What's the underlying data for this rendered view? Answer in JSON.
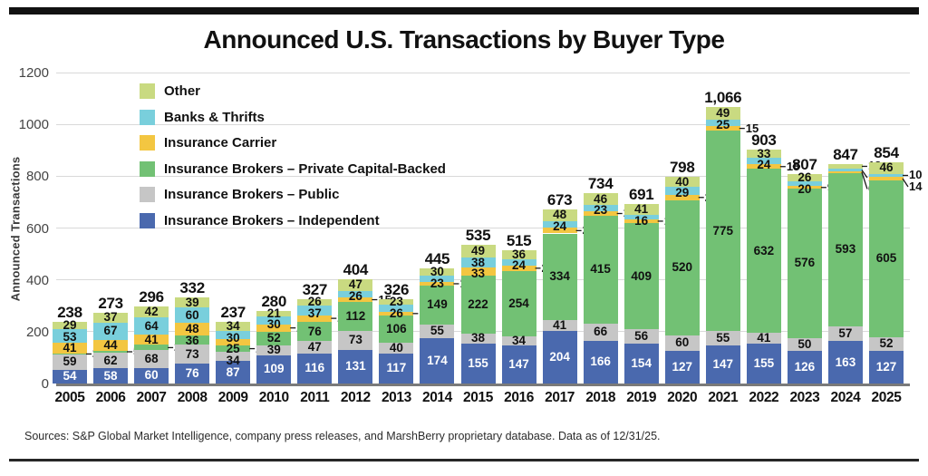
{
  "page": {
    "source_note": "Sources: S&P Global Market Intelligence, company press releases, and MarshBerry proprietary database. Data as of 12/31/25."
  },
  "chart_data": {
    "type": "bar",
    "stacked": true,
    "title": "Announced U.S. Transactions by Buyer Type",
    "xlabel": "",
    "ylabel": "Announced Transactions",
    "ylim": [
      0,
      1200
    ],
    "yticks": [
      0,
      200,
      400,
      600,
      800,
      1000,
      1200
    ],
    "grid": true,
    "legend_position": "upper-left",
    "categories": [
      "2005",
      "2006",
      "2007",
      "2008",
      "2009",
      "2010",
      "2011",
      "2012",
      "2013",
      "2014",
      "2015",
      "2016",
      "2017",
      "2018",
      "2019",
      "2020",
      "2021",
      "2022",
      "2023",
      "2024",
      "2025"
    ],
    "series": [
      {
        "key": "other",
        "name": "Other",
        "color": "#c9da81",
        "label_text_color": "#111111",
        "values": [
          29,
          37,
          42,
          39,
          34,
          21,
          26,
          47,
          23,
          30,
          49,
          36,
          48,
          46,
          41,
          40,
          49,
          33,
          26,
          18,
          46
        ]
      },
      {
        "key": "banks",
        "name": "Banks & Thrifts",
        "color": "#79cfdc",
        "label_text_color": "#111111",
        "values": [
          53,
          67,
          64,
          60,
          30,
          30,
          37,
          26,
          26,
          23,
          38,
          24,
          24,
          23,
          16,
          29,
          25,
          24,
          20,
          10,
          10
        ]
      },
      {
        "key": "carrier",
        "name": "Insurance Carrier",
        "color": "#f3c641",
        "label_text_color": "#111111",
        "values": [
          41,
          44,
          41,
          48,
          25,
          29,
          25,
          15,
          14,
          14,
          33,
          20,
          22,
          18,
          15,
          22,
          15,
          18,
          9,
          6,
          14
        ]
      },
      {
        "key": "pcb",
        "name": "Insurance Brokers – Private Capital-Backed",
        "color": "#72c174",
        "label_text_color": "#111111",
        "values": [
          2,
          5,
          21,
          36,
          27,
          52,
          76,
          112,
          106,
          149,
          222,
          254,
          334,
          415,
          409,
          520,
          775,
          632,
          576,
          593,
          605
        ]
      },
      {
        "key": "public",
        "name": "Insurance Brokers – Public",
        "color": "#c6c6c6",
        "label_text_color": "#111111",
        "values": [
          59,
          62,
          68,
          73,
          34,
          39,
          47,
          73,
          40,
          55,
          38,
          34,
          41,
          66,
          56,
          60,
          55,
          41,
          50,
          57,
          52
        ]
      },
      {
        "key": "independent",
        "name": "Insurance Brokers – Independent",
        "color": "#4a69ae",
        "label_text_color": "#ffffff",
        "values": [
          54,
          58,
          60,
          76,
          87,
          109,
          116,
          131,
          117,
          174,
          155,
          147,
          204,
          166,
          154,
          127,
          147,
          155,
          126,
          163,
          127
        ]
      }
    ],
    "totals_display": [
      "238",
      "273",
      "296",
      "332",
      "237",
      "280",
      "327",
      "404",
      "326",
      "445",
      "535",
      "515",
      "673",
      "734",
      "691",
      "798",
      "1,066",
      "903",
      "807",
      "847",
      "854"
    ],
    "callout_labels": [
      "2005|pcb",
      "2006|pcb",
      "2007|pcb",
      "2009|pcb",
      "2010|carrier",
      "2011|carrier",
      "2012|carrier",
      "2013|carrier",
      "2014|carrier",
      "2016|carrier",
      "2017|carrier",
      "2018|carrier",
      "2019|carrier",
      "2020|carrier",
      "2021|carrier",
      "2022|carrier",
      "2023|carrier",
      "2024|other",
      "2024|banks",
      "2024|carrier",
      "2025|banks",
      "2025|carrier"
    ]
  }
}
